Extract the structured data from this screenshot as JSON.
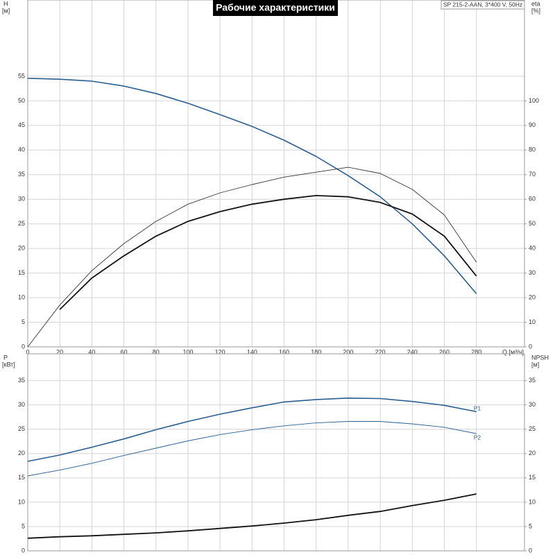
{
  "chart_data": [
    {
      "type": "line",
      "title": "Рабочие характеристики",
      "subtitle": "SP 215-2-AAN, 3*400 V, 50Hz",
      "x_label": "Q [м³/ч]",
      "y_label": "H",
      "y_unit": "[м]",
      "y2_label": "eta",
      "y2_unit": "[%]",
      "x": [
        0,
        20,
        40,
        60,
        80,
        100,
        120,
        140,
        160,
        180,
        200,
        220,
        240,
        260,
        280
      ],
      "xlim": [
        0,
        310
      ],
      "xticks": [
        0,
        20,
        40,
        60,
        80,
        100,
        120,
        140,
        160,
        180,
        200,
        220,
        240,
        260,
        280
      ],
      "ylim": [
        0,
        70.5
      ],
      "yticks": [
        0,
        5,
        10,
        15,
        20,
        25,
        30,
        35,
        40,
        45,
        50,
        55
      ],
      "y2lim": [
        0,
        141
      ],
      "y2ticks": [
        0,
        10,
        20,
        30,
        40,
        50,
        60,
        70,
        80,
        90,
        100
      ],
      "grid": true,
      "series": [
        {
          "color": "#2a5d8f",
          "width": 1.6,
          "values": [
            54.6,
            54.4,
            54.0,
            53.0,
            51.5,
            49.5,
            47.2,
            44.8,
            42.0,
            38.7,
            34.8,
            30.5,
            25.0,
            18.5,
            10.8
          ]
        },
        {
          "color": "#111111",
          "width": 1.8,
          "axis": "y2",
          "values": [
            null,
            15.2,
            28,
            37,
            45,
            51,
            55,
            58,
            60,
            61.5,
            61,
            58.7,
            54,
            45,
            28.8
          ]
        },
        {
          "color": "#333333",
          "width": 0.9,
          "axis": "y2",
          "values": [
            0,
            17,
            31,
            42,
            51,
            58,
            62.6,
            66,
            69,
            71,
            73,
            70.5,
            64,
            53.6,
            34.4
          ]
        }
      ]
    },
    {
      "type": "line",
      "y_label": "P",
      "y_unit": "[кВт]",
      "y2_label": "NPSH",
      "y2_unit": "[м]",
      "x": [
        0,
        20,
        40,
        60,
        80,
        100,
        120,
        140,
        160,
        180,
        200,
        220,
        240,
        260,
        280
      ],
      "xlim": [
        0,
        310
      ],
      "xticks": [
        0,
        20,
        40,
        60,
        80,
        100,
        120,
        140,
        160,
        180,
        200,
        220,
        240,
        260,
        280
      ],
      "ylim": [
        0,
        40.5
      ],
      "yticks": [
        0,
        5,
        10,
        15,
        20,
        25,
        30,
        35
      ],
      "y2lim": [
        0,
        40.5
      ],
      "y2ticks": [
        0,
        5,
        10,
        15,
        20,
        25,
        30,
        35
      ],
      "grid": true,
      "series": [
        {
          "name": "P1",
          "color": "#2a5d8f",
          "width": 1.6,
          "values": [
            18.4,
            19.7,
            21.3,
            23,
            24.9,
            26.6,
            28.1,
            29.4,
            30.6,
            31.1,
            31.4,
            31.3,
            30.7,
            29.9,
            28.6
          ]
        },
        {
          "name": "P2",
          "color": "#2a5d8f",
          "width": 0.9,
          "values": [
            15.4,
            16.6,
            18,
            19.6,
            21.1,
            22.6,
            23.9,
            24.9,
            25.7,
            26.3,
            26.6,
            26.6,
            26.1,
            25.4,
            24.1
          ]
        },
        {
          "color": "#111111",
          "width": 1.8,
          "axis": "y2",
          "values": [
            2.6,
            2.9,
            3.1,
            3.4,
            3.7,
            4.1,
            4.6,
            5.1,
            5.7,
            6.4,
            7.3,
            8.1,
            9.3,
            10.4,
            11.7
          ]
        }
      ]
    }
  ]
}
